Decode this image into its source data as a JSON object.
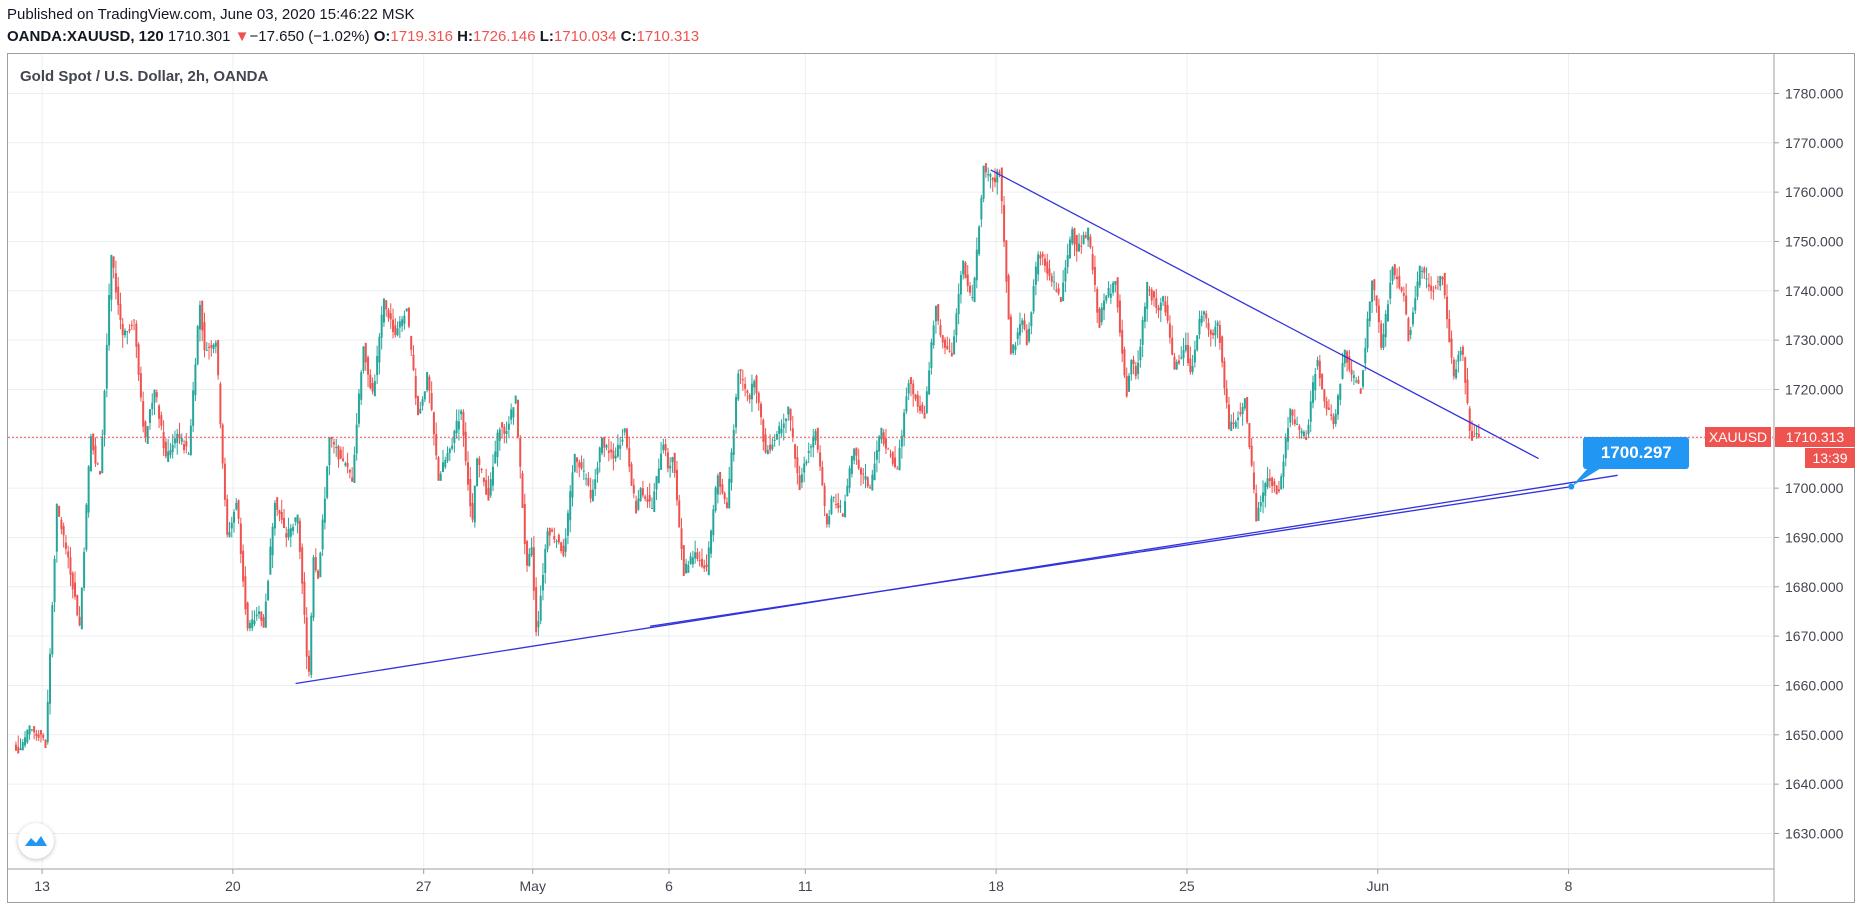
{
  "header": {
    "published": "Published on TradingView.com, June 03, 2020 15:46:22 MSK",
    "symbol": "OANDA:XAUUSD, 120",
    "last": "1710.301",
    "change_arrow": "▼",
    "change": "−17.650 (−1.02%)",
    "o_label": "O:",
    "o_value": "1719.316",
    "h_label": "H:",
    "h_value": "1726.146",
    "l_label": "L:",
    "l_value": "1710.034",
    "c_label": "C:",
    "c_value": "1710.313"
  },
  "legend": {
    "title": "Gold Spot / U.S. Dollar, 2h, OANDA"
  },
  "price_badges": {
    "symbol": "XAUUSD",
    "price": "1710.313",
    "countdown": "13:39",
    "callout": "1700.297"
  },
  "colors": {
    "up": "#26a69a",
    "down": "#ef5350",
    "trendline": "#3333dd",
    "callout": "#2196f3",
    "grid": "#eceff2",
    "axis_text": "#434651"
  },
  "icons": {
    "logo": "tradingview-logo-icon"
  },
  "chart_data": {
    "type": "candlestick",
    "title": "Gold Spot / U.S. Dollar, 2h, OANDA",
    "ylim": [
      1623,
      1788
    ],
    "y_ticks": [
      "1780.000",
      "1770.000",
      "1760.000",
      "1750.000",
      "1740.000",
      "1730.000",
      "1720.000",
      "1710.000",
      "1700.000",
      "1690.000",
      "1680.000",
      "1670.000",
      "1660.000",
      "1650.000",
      "1640.000",
      "1630.000"
    ],
    "x_ticks": [
      {
        "label": "13",
        "day": 0
      },
      {
        "label": "20",
        "day": 7
      },
      {
        "label": "27",
        "day": 14
      },
      {
        "label": "May",
        "day": 18
      },
      {
        "label": "6",
        "day": 23
      },
      {
        "label": "11",
        "day": 28
      },
      {
        "label": "18",
        "day": 35
      },
      {
        "label": "25",
        "day": 42
      },
      {
        "label": "Jun",
        "day": 49
      },
      {
        "label": "8",
        "day": 56
      }
    ],
    "x_day_range": [
      -1.25,
      63.5
    ],
    "last_price": 1710.313,
    "daily_approx": [
      {
        "day": -1,
        "o": 1648,
        "h": 1651,
        "l": 1647,
        "c": 1650
      },
      {
        "day": 0,
        "o": 1650,
        "h": 1696,
        "l": 1648,
        "c": 1686
      },
      {
        "day": 1,
        "o": 1686,
        "h": 1711,
        "l": 1672,
        "c": 1705
      },
      {
        "day": 2,
        "o": 1705,
        "h": 1747,
        "l": 1703,
        "c": 1731
      },
      {
        "day": 3,
        "o": 1731,
        "h": 1734,
        "l": 1709,
        "c": 1716
      },
      {
        "day": 4,
        "o": 1716,
        "h": 1720,
        "l": 1706,
        "c": 1711
      },
      {
        "day": 5,
        "o": 1711,
        "h": 1738,
        "l": 1707,
        "c": 1728
      },
      {
        "day": 6,
        "o": 1728,
        "h": 1730,
        "l": 1690,
        "c": 1693
      },
      {
        "day": 7,
        "o": 1693,
        "h": 1698,
        "l": 1671,
        "c": 1675
      },
      {
        "day": 8,
        "o": 1675,
        "h": 1698,
        "l": 1672,
        "c": 1690
      },
      {
        "day": 9,
        "o": 1690,
        "h": 1694,
        "l": 1661,
        "c": 1686
      },
      {
        "day": 10,
        "o": 1686,
        "h": 1710,
        "l": 1682,
        "c": 1706
      },
      {
        "day": 11,
        "o": 1706,
        "h": 1729,
        "l": 1702,
        "c": 1723
      },
      {
        "day": 12,
        "o": 1723,
        "h": 1738,
        "l": 1719,
        "c": 1731
      },
      {
        "day": 13,
        "o": 1731,
        "h": 1736,
        "l": 1715,
        "c": 1718
      },
      {
        "day": 14,
        "o": 1718,
        "h": 1723,
        "l": 1702,
        "c": 1708
      },
      {
        "day": 15,
        "o": 1708,
        "h": 1716,
        "l": 1692,
        "c": 1706
      },
      {
        "day": 16,
        "o": 1706,
        "h": 1713,
        "l": 1698,
        "c": 1711
      },
      {
        "day": 17,
        "o": 1711,
        "h": 1718,
        "l": 1683,
        "c": 1688
      },
      {
        "day": 18,
        "o": 1688,
        "h": 1692,
        "l": 1670,
        "c": 1689
      },
      {
        "day": 19,
        "o": 1689,
        "h": 1707,
        "l": 1686,
        "c": 1702
      },
      {
        "day": 20,
        "o": 1702,
        "h": 1710,
        "l": 1697,
        "c": 1706
      },
      {
        "day": 21,
        "o": 1706,
        "h": 1712,
        "l": 1695,
        "c": 1700
      },
      {
        "day": 22,
        "o": 1700,
        "h": 1710,
        "l": 1696,
        "c": 1704
      },
      {
        "day": 23,
        "o": 1704,
        "h": 1707,
        "l": 1683,
        "c": 1687
      },
      {
        "day": 24,
        "o": 1687,
        "h": 1703,
        "l": 1683,
        "c": 1699
      },
      {
        "day": 25,
        "o": 1699,
        "h": 1724,
        "l": 1696,
        "c": 1718
      },
      {
        "day": 26,
        "o": 1718,
        "h": 1723,
        "l": 1707,
        "c": 1711
      },
      {
        "day": 27,
        "o": 1711,
        "h": 1716,
        "l": 1700,
        "c": 1705
      },
      {
        "day": 28,
        "o": 1705,
        "h": 1712,
        "l": 1692,
        "c": 1698
      },
      {
        "day": 29,
        "o": 1698,
        "h": 1708,
        "l": 1695,
        "c": 1704
      },
      {
        "day": 30,
        "o": 1704,
        "h": 1712,
        "l": 1700,
        "c": 1708
      },
      {
        "day": 31,
        "o": 1708,
        "h": 1722,
        "l": 1704,
        "c": 1719
      },
      {
        "day": 32,
        "o": 1719,
        "h": 1737,
        "l": 1715,
        "c": 1731
      },
      {
        "day": 33,
        "o": 1731,
        "h": 1746,
        "l": 1727,
        "c": 1741
      },
      {
        "day": 34,
        "o": 1741,
        "h": 1765,
        "l": 1738,
        "c": 1762
      },
      {
        "day": 35,
        "o": 1762,
        "h": 1765,
        "l": 1727,
        "c": 1734
      },
      {
        "day": 36,
        "o": 1734,
        "h": 1748,
        "l": 1729,
        "c": 1743
      },
      {
        "day": 37,
        "o": 1743,
        "h": 1753,
        "l": 1738,
        "c": 1748
      },
      {
        "day": 38,
        "o": 1748,
        "h": 1752,
        "l": 1733,
        "c": 1738
      },
      {
        "day": 39,
        "o": 1738,
        "h": 1742,
        "l": 1718,
        "c": 1726
      },
      {
        "day": 40,
        "o": 1726,
        "h": 1741,
        "l": 1722,
        "c": 1736
      },
      {
        "day": 41,
        "o": 1736,
        "h": 1739,
        "l": 1724,
        "c": 1729
      },
      {
        "day": 42,
        "o": 1729,
        "h": 1736,
        "l": 1723,
        "c": 1731
      },
      {
        "day": 43,
        "o": 1731,
        "h": 1734,
        "l": 1712,
        "c": 1715
      },
      {
        "day": 44,
        "o": 1715,
        "h": 1718,
        "l": 1694,
        "c": 1702
      },
      {
        "day": 45,
        "o": 1702,
        "h": 1716,
        "l": 1699,
        "c": 1713
      },
      {
        "day": 46,
        "o": 1713,
        "h": 1727,
        "l": 1710,
        "c": 1720
      },
      {
        "day": 47,
        "o": 1720,
        "h": 1728,
        "l": 1712,
        "c": 1724
      },
      {
        "day": 48,
        "o": 1724,
        "h": 1742,
        "l": 1720,
        "c": 1737
      },
      {
        "day": 49,
        "o": 1737,
        "h": 1745,
        "l": 1728,
        "c": 1739
      },
      {
        "day": 50,
        "o": 1739,
        "h": 1745,
        "l": 1730,
        "c": 1740
      },
      {
        "day": 51,
        "o": 1740,
        "h": 1743,
        "l": 1722,
        "c": 1727
      },
      {
        "day": 52,
        "o": 1727,
        "h": 1729,
        "l": 1710,
        "c": 1710.3
      }
    ],
    "trendlines": [
      {
        "name": "",
        "from": {
          "day": 22.3,
          "price": 1672
        },
        "to": {
          "day": 56.1,
          "price": 1700.3
        }
      },
      {
        "name": "",
        "from": {
          "day": 34.8,
          "price": 1764.5
        },
        "to": {
          "day": 54.9,
          "price": 1706
        }
      },
      {
        "name": "",
        "from": {
          "day": 9.3,
          "price": 1660.4
        },
        "to": {
          "day": 57.8,
          "price": 1702.6
        }
      }
    ],
    "grid": true
  }
}
